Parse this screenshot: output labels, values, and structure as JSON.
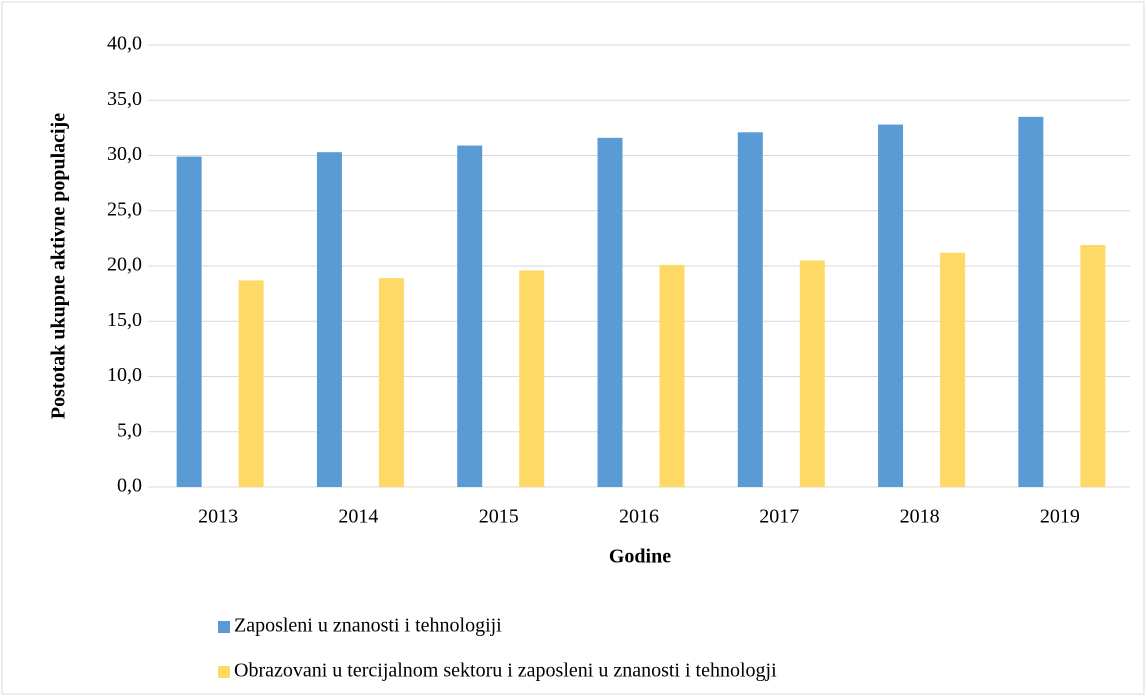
{
  "chart_data": {
    "type": "bar",
    "ylabel": "Postotak ukupne aktivne populacije",
    "xlabel": "Godine",
    "categories": [
      "2013",
      "2014",
      "2015",
      "2016",
      "2017",
      "2018",
      "2019"
    ],
    "series": [
      {
        "name": "Zaposleni u znanosti i tehnologiji",
        "color": "#5b9bd5",
        "values": [
          29.9,
          30.3,
          30.9,
          31.6,
          32.1,
          32.8,
          33.5
        ]
      },
      {
        "name": "Obrazovani u tercijalnom sektoru i zaposleni u znanosti i tehnologji",
        "color": "#ffd966",
        "values": [
          18.7,
          18.9,
          19.6,
          20.1,
          20.5,
          21.2,
          21.9
        ]
      }
    ],
    "ylim": [
      0,
      40
    ],
    "yticks": [
      {
        "value": 0,
        "label": "0,0"
      },
      {
        "value": 5,
        "label": "5,0"
      },
      {
        "value": 10,
        "label": "10,0"
      },
      {
        "value": 15,
        "label": "15,0"
      },
      {
        "value": 20,
        "label": "20,0"
      },
      {
        "value": 25,
        "label": "25,0"
      },
      {
        "value": 30,
        "label": "30,0"
      },
      {
        "value": 35,
        "label": "35,0"
      },
      {
        "value": 40,
        "label": "40,0"
      }
    ],
    "grid": true,
    "legend": "bottom"
  }
}
